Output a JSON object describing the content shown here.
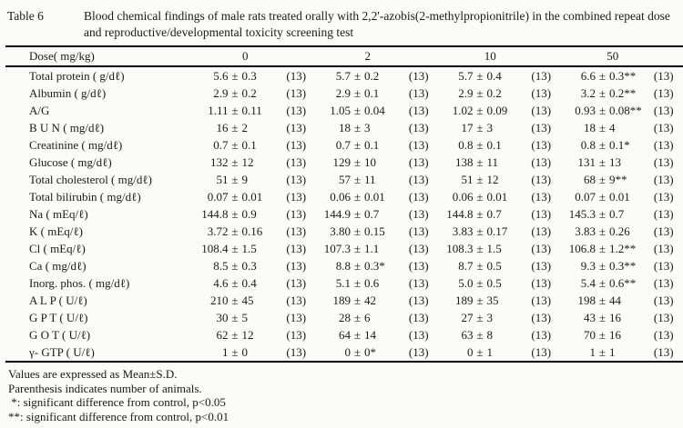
{
  "caption": {
    "table_number": "Table 6",
    "text": "Blood chemical findings of male rats treated orally with 2,2'-azobis(2-methylpropionitrile) in the combined repeat dose and reproductive/developmental toxicity screening test"
  },
  "table": {
    "dose_header_label": "Dose( mg/kg)",
    "doses": [
      "0",
      "2",
      "10",
      "50"
    ],
    "pm": "±",
    "rows": [
      {
        "label": "Total protein ( g/dℓ)",
        "cells": [
          [
            "5.6",
            "0.3",
            "",
            "13"
          ],
          [
            "5.7",
            "0.2",
            "",
            "13"
          ],
          [
            "5.7",
            "0.4",
            "",
            "13"
          ],
          [
            "6.6",
            "0.3",
            "**",
            "13"
          ]
        ]
      },
      {
        "label": "Albumin ( g/dℓ)",
        "cells": [
          [
            "2.9",
            "0.2",
            "",
            "13"
          ],
          [
            "2.9",
            "0.1",
            "",
            "13"
          ],
          [
            "2.9",
            "0.2",
            "",
            "13"
          ],
          [
            "3.2",
            "0.2",
            "**",
            "13"
          ]
        ]
      },
      {
        "label": "A/G",
        "cells": [
          [
            "1.11",
            "0.11",
            "",
            "13"
          ],
          [
            "1.05",
            "0.04",
            "",
            "13"
          ],
          [
            "1.02",
            "0.09",
            "",
            "13"
          ],
          [
            "0.93",
            "0.08",
            "**",
            "13"
          ]
        ]
      },
      {
        "label": "B U N ( mg/dℓ)",
        "cells": [
          [
            "16",
            "2",
            "",
            "13"
          ],
          [
            "18",
            "3",
            "",
            "13"
          ],
          [
            "17",
            "3",
            "",
            "13"
          ],
          [
            "18",
            "4",
            "",
            "13"
          ]
        ]
      },
      {
        "label": "Creatinine ( mg/dℓ)",
        "cells": [
          [
            "0.7",
            "0.1",
            "",
            "13"
          ],
          [
            "0.7",
            "0.1",
            "",
            "13"
          ],
          [
            "0.8",
            "0.1",
            "",
            "13"
          ],
          [
            "0.8",
            "0.1",
            "*",
            "13"
          ]
        ]
      },
      {
        "label": "Glucose ( mg/dℓ)",
        "cells": [
          [
            "132",
            "12",
            "",
            "13"
          ],
          [
            "129",
            "10",
            "",
            "13"
          ],
          [
            "138",
            "11",
            "",
            "13"
          ],
          [
            "131",
            "13",
            "",
            "13"
          ]
        ]
      },
      {
        "label": "Total cholesterol ( mg/dℓ)",
        "cells": [
          [
            "51",
            "9",
            "",
            "13"
          ],
          [
            "57",
            "11",
            "",
            "13"
          ],
          [
            "51",
            "12",
            "",
            "13"
          ],
          [
            "68",
            "9",
            "**",
            "13"
          ]
        ]
      },
      {
        "label": "Total bilirubin ( mg/dℓ)",
        "cells": [
          [
            "0.07",
            "0.01",
            "",
            "13"
          ],
          [
            "0.06",
            "0.01",
            "",
            "13"
          ],
          [
            "0.06",
            "0.01",
            "",
            "13"
          ],
          [
            "0.07",
            "0.01",
            "",
            "13"
          ]
        ]
      },
      {
        "label": "Na ( mEq/ℓ)",
        "cells": [
          [
            "144.8",
            "0.9",
            "",
            "13"
          ],
          [
            "144.9",
            "0.7",
            "",
            "13"
          ],
          [
            "144.8",
            "0.7",
            "",
            "13"
          ],
          [
            "145.3",
            "0.7",
            "",
            "13"
          ]
        ]
      },
      {
        "label": "K ( mEq/ℓ)",
        "cells": [
          [
            "3.72",
            "0.16",
            "",
            "13"
          ],
          [
            "3.80",
            "0.15",
            "",
            "13"
          ],
          [
            "3.83",
            "0.17",
            "",
            "13"
          ],
          [
            "3.83",
            "0.26",
            "",
            "13"
          ]
        ]
      },
      {
        "label": "Cl ( mEq/ℓ)",
        "cells": [
          [
            "108.4",
            "1.5",
            "",
            "13"
          ],
          [
            "107.3",
            "1.1",
            "",
            "13"
          ],
          [
            "108.3",
            "1.5",
            "",
            "13"
          ],
          [
            "106.8",
            "1.2",
            "**",
            "13"
          ]
        ]
      },
      {
        "label": "Ca ( mg/dℓ)",
        "cells": [
          [
            "8.5",
            "0.3",
            "",
            "13"
          ],
          [
            "8.8",
            "0.3",
            "*",
            "13"
          ],
          [
            "8.7",
            "0.5",
            "",
            "13"
          ],
          [
            "9.3",
            "0.3",
            "**",
            "13"
          ]
        ]
      },
      {
        "label": "Inorg. phos. ( mg/dℓ)",
        "cells": [
          [
            "4.6",
            "0.4",
            "",
            "13"
          ],
          [
            "5.1",
            "0.6",
            "",
            "13"
          ],
          [
            "5.0",
            "0.5",
            "",
            "13"
          ],
          [
            "5.4",
            "0.6",
            "**",
            "13"
          ]
        ]
      },
      {
        "label": "A L P ( U/ℓ)",
        "cells": [
          [
            "210",
            "45",
            "",
            "13"
          ],
          [
            "189",
            "42",
            "",
            "13"
          ],
          [
            "189",
            "35",
            "",
            "13"
          ],
          [
            "198",
            "44",
            "",
            "13"
          ]
        ]
      },
      {
        "label": "G P T ( U/ℓ)",
        "cells": [
          [
            "30",
            "5",
            "",
            "13"
          ],
          [
            "28",
            "6",
            "",
            "13"
          ],
          [
            "27",
            "3",
            "",
            "13"
          ],
          [
            "43",
            "16",
            "",
            "13"
          ]
        ]
      },
      {
        "label": "G O T ( U/ℓ)",
        "cells": [
          [
            "62",
            "12",
            "",
            "13"
          ],
          [
            "64",
            "14",
            "",
            "13"
          ],
          [
            "63",
            "8",
            "",
            "13"
          ],
          [
            "70",
            "16",
            "",
            "13"
          ]
        ]
      },
      {
        "label": "γ- GTP ( U/ℓ)",
        "cells": [
          [
            "1",
            "0",
            "",
            "13"
          ],
          [
            "0",
            "0",
            "*",
            "13"
          ],
          [
            "0",
            "1",
            "",
            "13"
          ],
          [
            "1",
            "1",
            "",
            "13"
          ]
        ]
      }
    ]
  },
  "footnotes": [
    "Values are expressed as Mean±S.D.",
    "Parenthesis indicates number of animals.",
    " *: significant difference from control, p<0.05",
    "**: significant difference from control, p<0.01"
  ]
}
